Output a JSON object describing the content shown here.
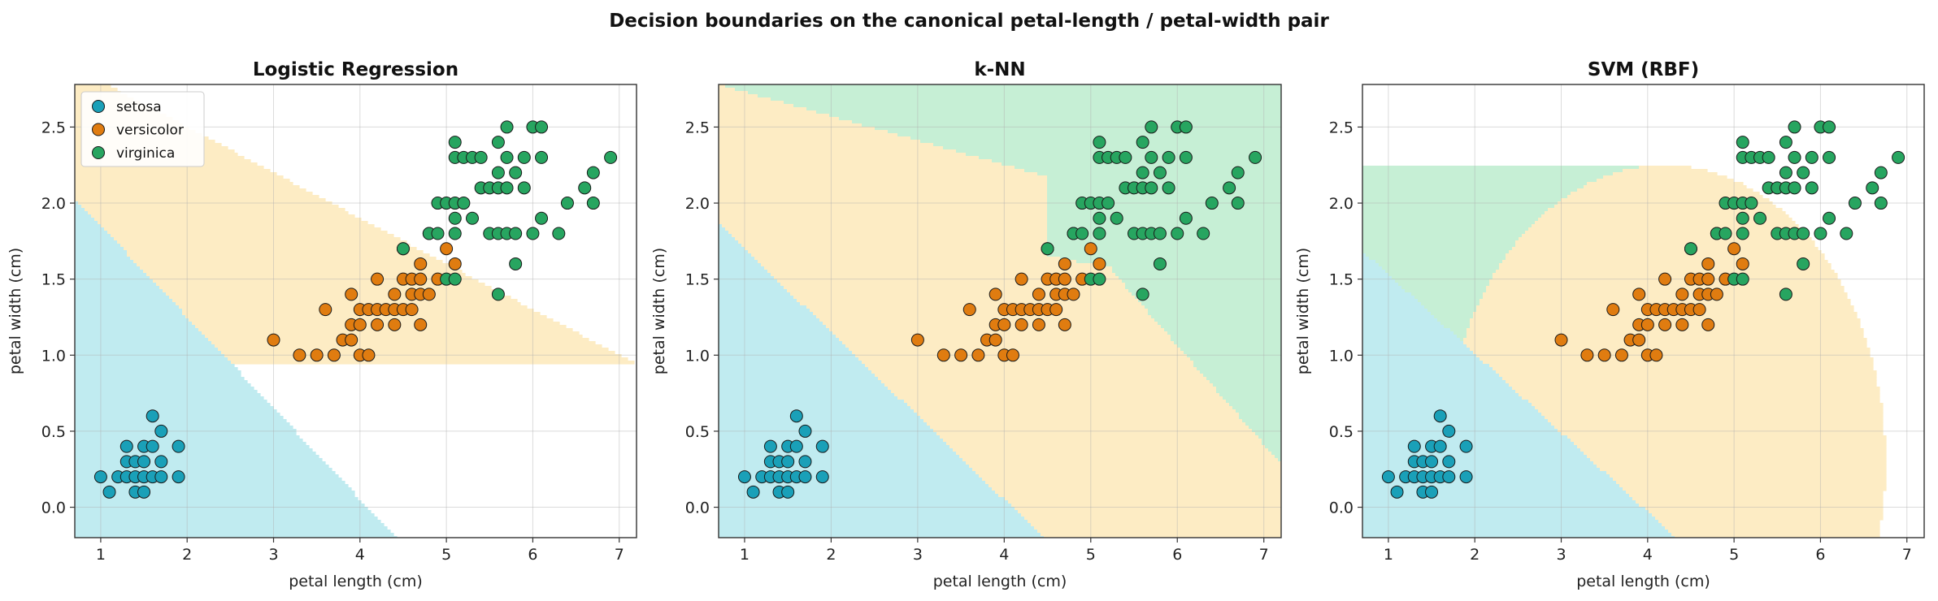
{
  "figure": {
    "suptitle": "Decision boundaries on the canonical petal-length / petal-width pair"
  },
  "colors": {
    "setosa": "#1aa0b8",
    "versicolor": "#e07c10",
    "virginica": "#27a560",
    "region_setosa": "#c0ebf0",
    "region_versicolor": "#fdecc4",
    "region_virginica": "#c6efd5"
  },
  "chart_data": [
    {
      "type": "scatter",
      "title": "Logistic Regression",
      "xlabel": "petal length (cm)",
      "ylabel": "petal width (cm)",
      "xlim": [
        0.7,
        7.2
      ],
      "ylim": [
        -0.2,
        2.78
      ],
      "xticks": [
        1,
        2,
        3,
        4,
        5,
        6,
        7
      ],
      "yticks": [
        0.0,
        0.5,
        1.0,
        1.5,
        2.0,
        2.5
      ],
      "grid": true,
      "legend": {
        "position": "top-left",
        "entries": [
          "setosa",
          "versicolor",
          "virginica"
        ]
      },
      "boundary_model": "logistic"
    },
    {
      "type": "scatter",
      "title": "k-NN",
      "xlabel": "petal length (cm)",
      "ylabel": "petal width (cm)",
      "xlim": [
        0.7,
        7.2
      ],
      "ylim": [
        -0.2,
        2.78
      ],
      "xticks": [
        1,
        2,
        3,
        4,
        5,
        6,
        7
      ],
      "yticks": [
        0.0,
        0.5,
        1.0,
        1.5,
        2.0,
        2.5
      ],
      "grid": true,
      "boundary_model": "knn"
    },
    {
      "type": "scatter",
      "title": "SVM (RBF)",
      "xlabel": "petal length (cm)",
      "ylabel": "petal width (cm)",
      "xlim": [
        0.7,
        7.2
      ],
      "ylim": [
        -0.2,
        2.78
      ],
      "xticks": [
        1,
        2,
        3,
        4,
        5,
        6,
        7
      ],
      "yticks": [
        0.0,
        0.5,
        1.0,
        1.5,
        2.0,
        2.5
      ],
      "grid": true,
      "boundary_model": "svm"
    }
  ],
  "points": {
    "setosa": [
      [
        1.0,
        0.2
      ],
      [
        1.1,
        0.1
      ],
      [
        1.2,
        0.2
      ],
      [
        1.3,
        0.2
      ],
      [
        1.3,
        0.3
      ],
      [
        1.3,
        0.4
      ],
      [
        1.4,
        0.1
      ],
      [
        1.4,
        0.2
      ],
      [
        1.4,
        0.3
      ],
      [
        1.5,
        0.1
      ],
      [
        1.5,
        0.2
      ],
      [
        1.5,
        0.3
      ],
      [
        1.5,
        0.4
      ],
      [
        1.6,
        0.2
      ],
      [
        1.6,
        0.4
      ],
      [
        1.6,
        0.6
      ],
      [
        1.7,
        0.2
      ],
      [
        1.7,
        0.3
      ],
      [
        1.7,
        0.5
      ],
      [
        1.9,
        0.2
      ],
      [
        1.9,
        0.4
      ]
    ],
    "versicolor": [
      [
        3.0,
        1.1
      ],
      [
        3.3,
        1.0
      ],
      [
        3.5,
        1.0
      ],
      [
        3.6,
        1.3
      ],
      [
        3.7,
        1.0
      ],
      [
        3.8,
        1.1
      ],
      [
        3.9,
        1.1
      ],
      [
        3.9,
        1.2
      ],
      [
        3.9,
        1.4
      ],
      [
        4.0,
        1.0
      ],
      [
        4.0,
        1.2
      ],
      [
        4.0,
        1.3
      ],
      [
        4.1,
        1.0
      ],
      [
        4.1,
        1.3
      ],
      [
        4.2,
        1.2
      ],
      [
        4.2,
        1.3
      ],
      [
        4.2,
        1.5
      ],
      [
        4.3,
        1.3
      ],
      [
        4.4,
        1.2
      ],
      [
        4.4,
        1.3
      ],
      [
        4.4,
        1.4
      ],
      [
        4.5,
        1.3
      ],
      [
        4.5,
        1.5
      ],
      [
        4.5,
        1.7
      ],
      [
        4.6,
        1.3
      ],
      [
        4.6,
        1.4
      ],
      [
        4.6,
        1.5
      ],
      [
        4.7,
        1.2
      ],
      [
        4.7,
        1.4
      ],
      [
        4.7,
        1.5
      ],
      [
        4.7,
        1.6
      ],
      [
        4.8,
        1.4
      ],
      [
        4.8,
        1.8
      ],
      [
        4.9,
        1.5
      ],
      [
        5.0,
        1.7
      ],
      [
        5.1,
        1.6
      ]
    ],
    "virginica": [
      [
        4.5,
        1.7
      ],
      [
        4.8,
        1.8
      ],
      [
        4.9,
        1.8
      ],
      [
        4.9,
        2.0
      ],
      [
        5.0,
        1.5
      ],
      [
        5.0,
        2.0
      ],
      [
        5.1,
        1.5
      ],
      [
        5.1,
        1.8
      ],
      [
        5.1,
        1.9
      ],
      [
        5.1,
        2.0
      ],
      [
        5.1,
        2.3
      ],
      [
        5.1,
        2.4
      ],
      [
        5.2,
        2.0
      ],
      [
        5.2,
        2.3
      ],
      [
        5.3,
        1.9
      ],
      [
        5.3,
        2.3
      ],
      [
        5.4,
        2.1
      ],
      [
        5.4,
        2.3
      ],
      [
        5.5,
        1.8
      ],
      [
        5.5,
        2.1
      ],
      [
        5.6,
        1.4
      ],
      [
        5.6,
        1.8
      ],
      [
        5.6,
        2.1
      ],
      [
        5.6,
        2.2
      ],
      [
        5.6,
        2.4
      ],
      [
        5.7,
        1.8
      ],
      [
        5.7,
        2.1
      ],
      [
        5.7,
        2.3
      ],
      [
        5.7,
        2.5
      ],
      [
        5.8,
        1.6
      ],
      [
        5.8,
        1.8
      ],
      [
        5.8,
        2.2
      ],
      [
        5.9,
        2.1
      ],
      [
        5.9,
        2.3
      ],
      [
        6.0,
        1.8
      ],
      [
        6.0,
        2.5
      ],
      [
        6.1,
        1.9
      ],
      [
        6.1,
        2.3
      ],
      [
        6.1,
        2.5
      ],
      [
        6.3,
        1.8
      ],
      [
        6.4,
        2.0
      ],
      [
        6.6,
        2.1
      ],
      [
        6.7,
        2.0
      ],
      [
        6.7,
        2.2
      ],
      [
        6.9,
        2.3
      ]
    ]
  }
}
